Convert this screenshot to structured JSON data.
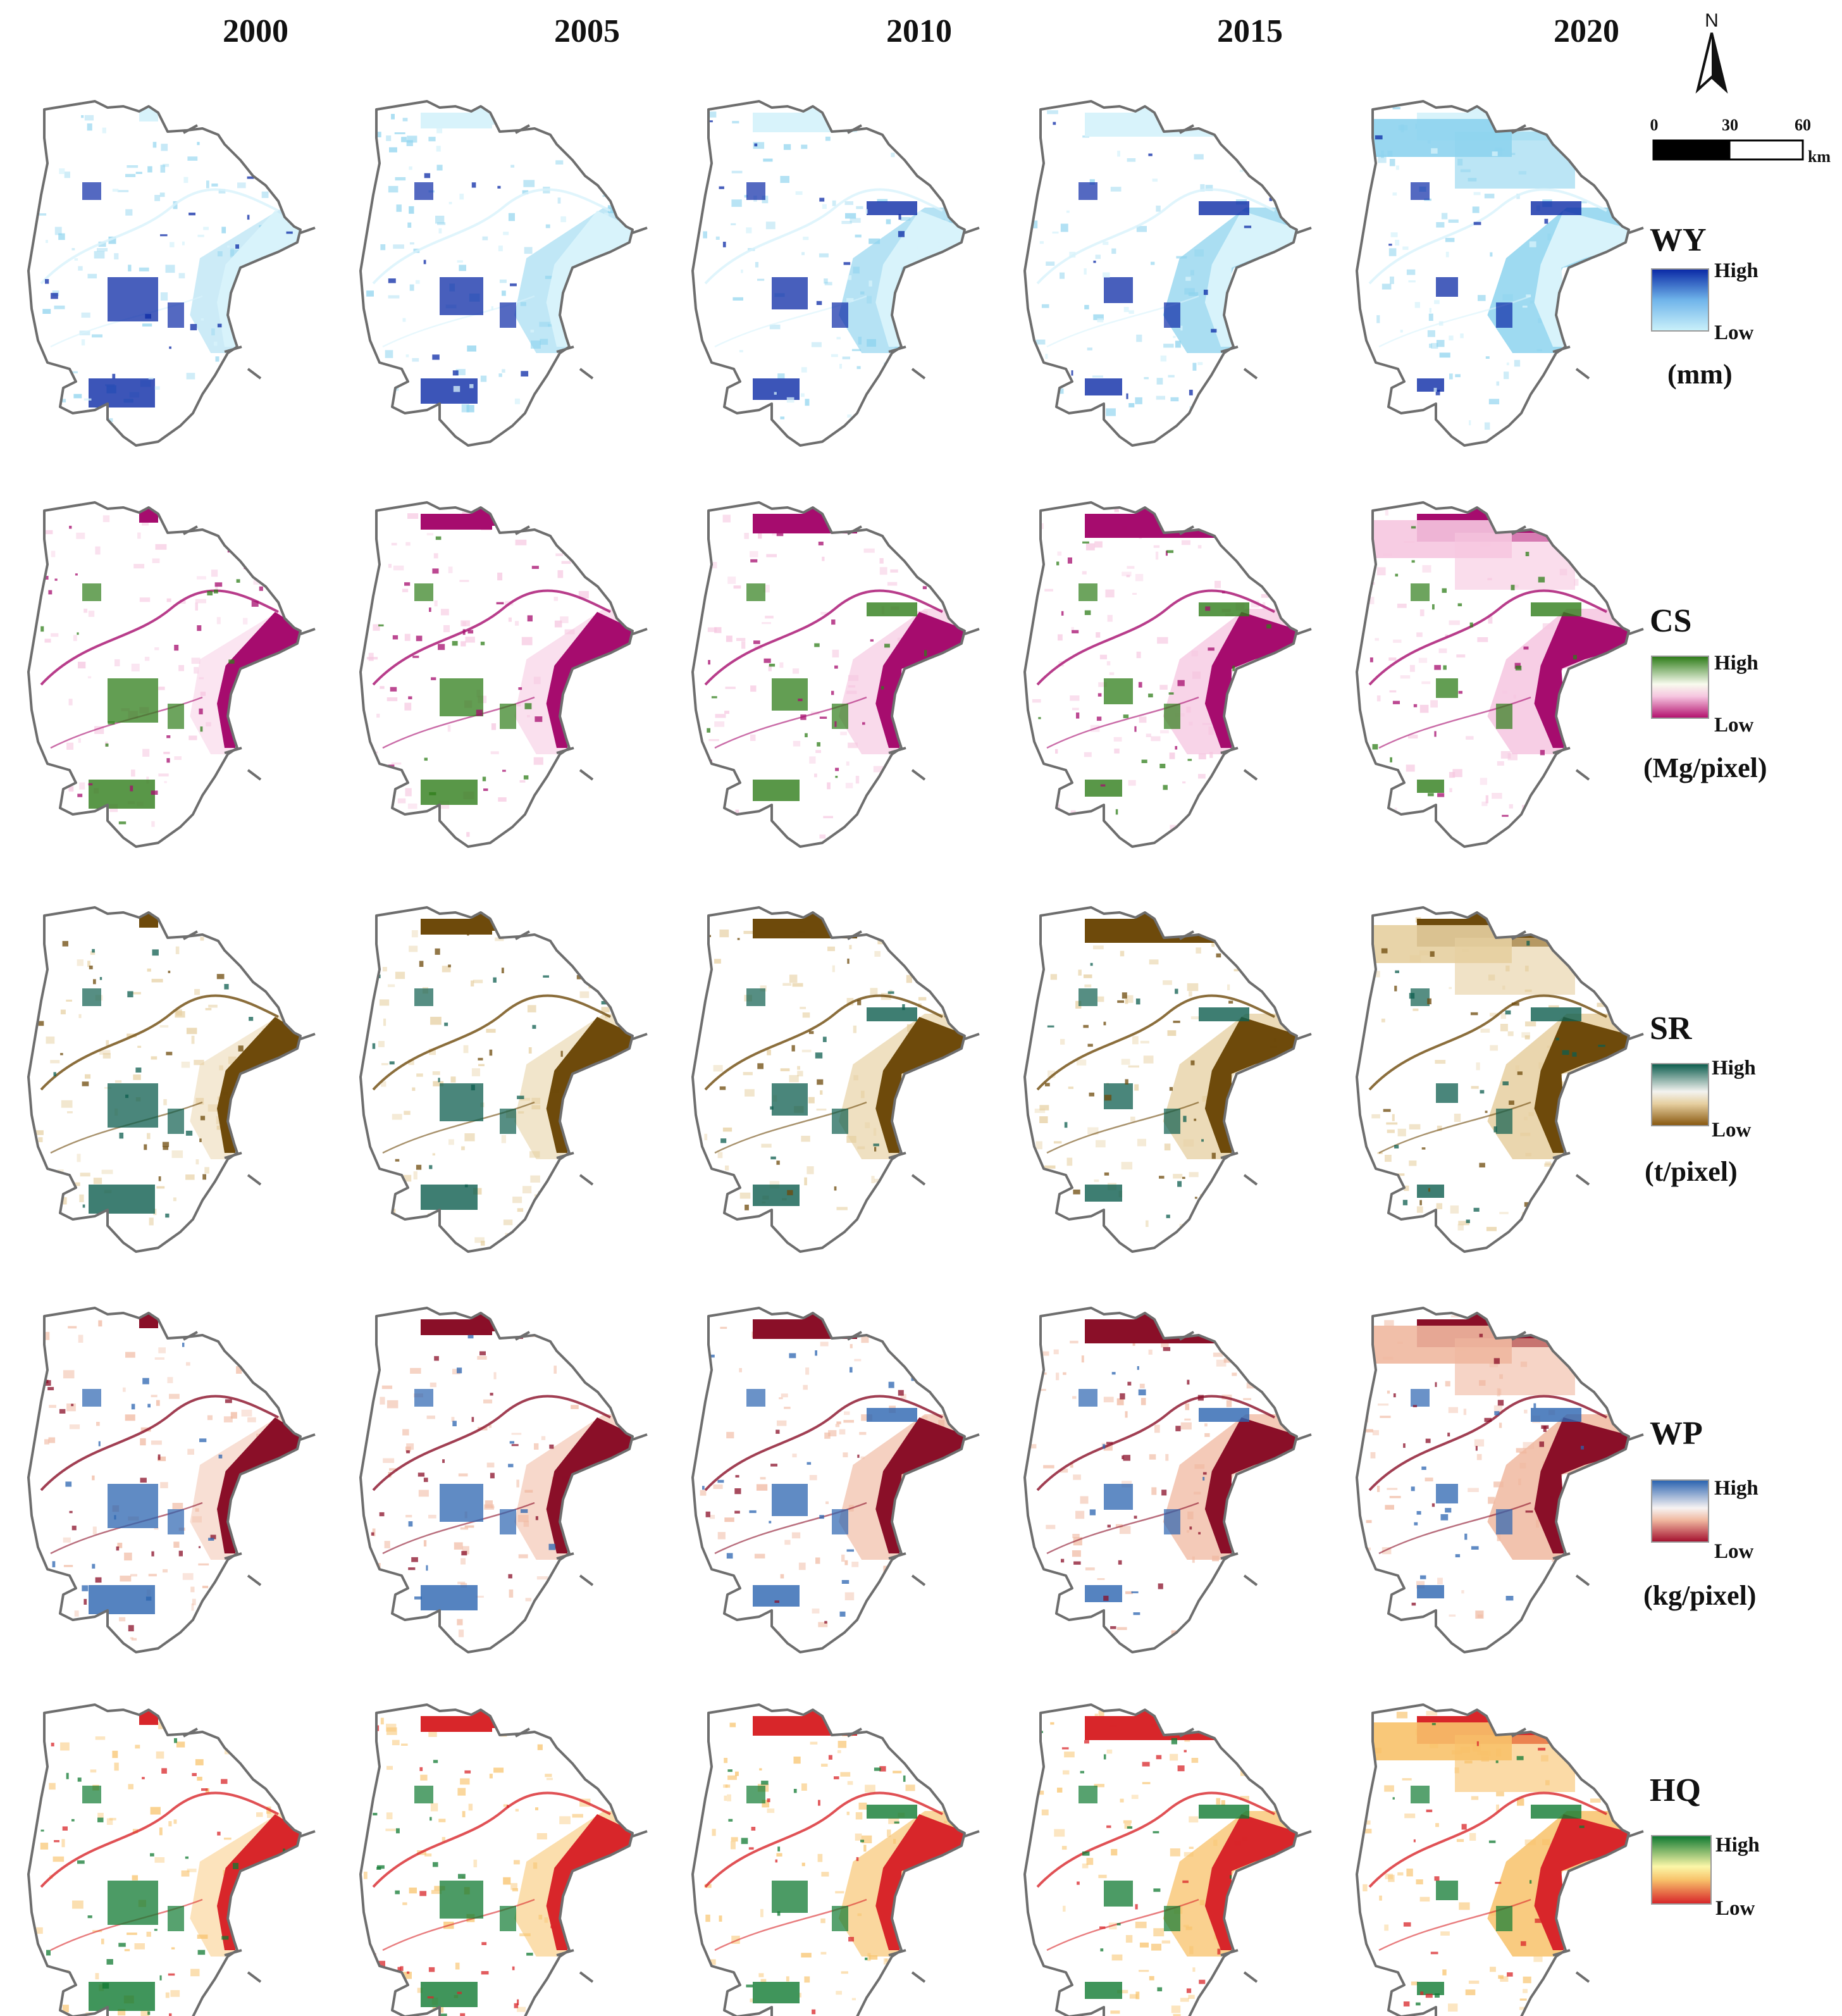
{
  "years": [
    "2000",
    "2005",
    "2010",
    "2015",
    "2020"
  ],
  "north_label": "N",
  "scale": {
    "t0": "0",
    "t1": "30",
    "t2": "60",
    "unit": "km"
  },
  "services": [
    {
      "code": "WY",
      "high": "High",
      "low": "Low",
      "unit": "(mm)",
      "colors": [
        "#d8f3fb",
        "#8dd3ee",
        "#3f7fd8",
        "#0b2aa6"
      ]
    },
    {
      "code": "CS",
      "high": "High",
      "low": "Low",
      "unit": "(Mg/pixel)",
      "colors": [
        "#a60c6e",
        "#f6c6e0",
        "#f6fbe8",
        "#2f7d1a"
      ]
    },
    {
      "code": "SR",
      "high": "High",
      "low": "Low",
      "unit": "(t/pixel)",
      "colors": [
        "#6e4a0b",
        "#e6cfa0",
        "#f2f2ef",
        "#0e5e4f"
      ]
    },
    {
      "code": "WP",
      "high": "High",
      "low": "Low",
      "unit": "(kg/pixel)",
      "colors": [
        "#8a0f28",
        "#f0b8a0",
        "#f5f1f1",
        "#2b64b0"
      ]
    },
    {
      "code": "HQ",
      "high": "High",
      "low": "Low",
      "unit": "",
      "colors": [
        "#d8262a",
        "#f8c26a",
        "#fbf7a8",
        "#107a32"
      ]
    }
  ]
}
